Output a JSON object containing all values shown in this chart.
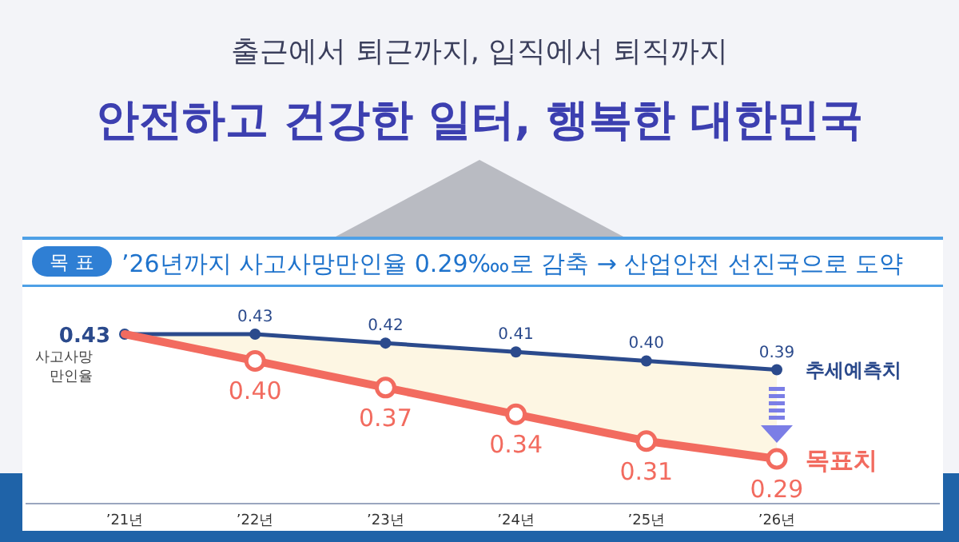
{
  "chart_data": {
    "type": "line",
    "title": "안전하고 건강한 일터, 행복한 대한민국",
    "subtitle": "출근에서 퇴근까지, 입직에서 퇴직까지",
    "annotations": [
      "목 표",
      "’26년까지 사고사망만인율 0.29‱로 감축 → 산업안전 선진국으로 도약"
    ],
    "ylabel": "사고사망 만인율",
    "categories": [
      "’21년",
      "’22년",
      "’23년",
      "’24년",
      "’25년",
      "’26년"
    ],
    "series": [
      {
        "name": "추세예측치",
        "color": "#2b4a8c",
        "values": [
          0.43,
          0.43,
          0.42,
          0.41,
          0.4,
          0.39
        ],
        "value_labels": [
          "0.43",
          "0.43",
          "0.42",
          "0.41",
          "0.40",
          "0.39"
        ],
        "marker": "circle"
      },
      {
        "name": "목표치",
        "color": "#f26b5f",
        "values": [
          0.43,
          0.4,
          0.37,
          0.34,
          0.31,
          0.29
        ],
        "value_labels": [
          null,
          "0.40",
          "0.37",
          "0.34",
          "0.31",
          "0.29"
        ],
        "marker": "circle"
      }
    ],
    "tick_labels": "x",
    "legend": false
  }
}
